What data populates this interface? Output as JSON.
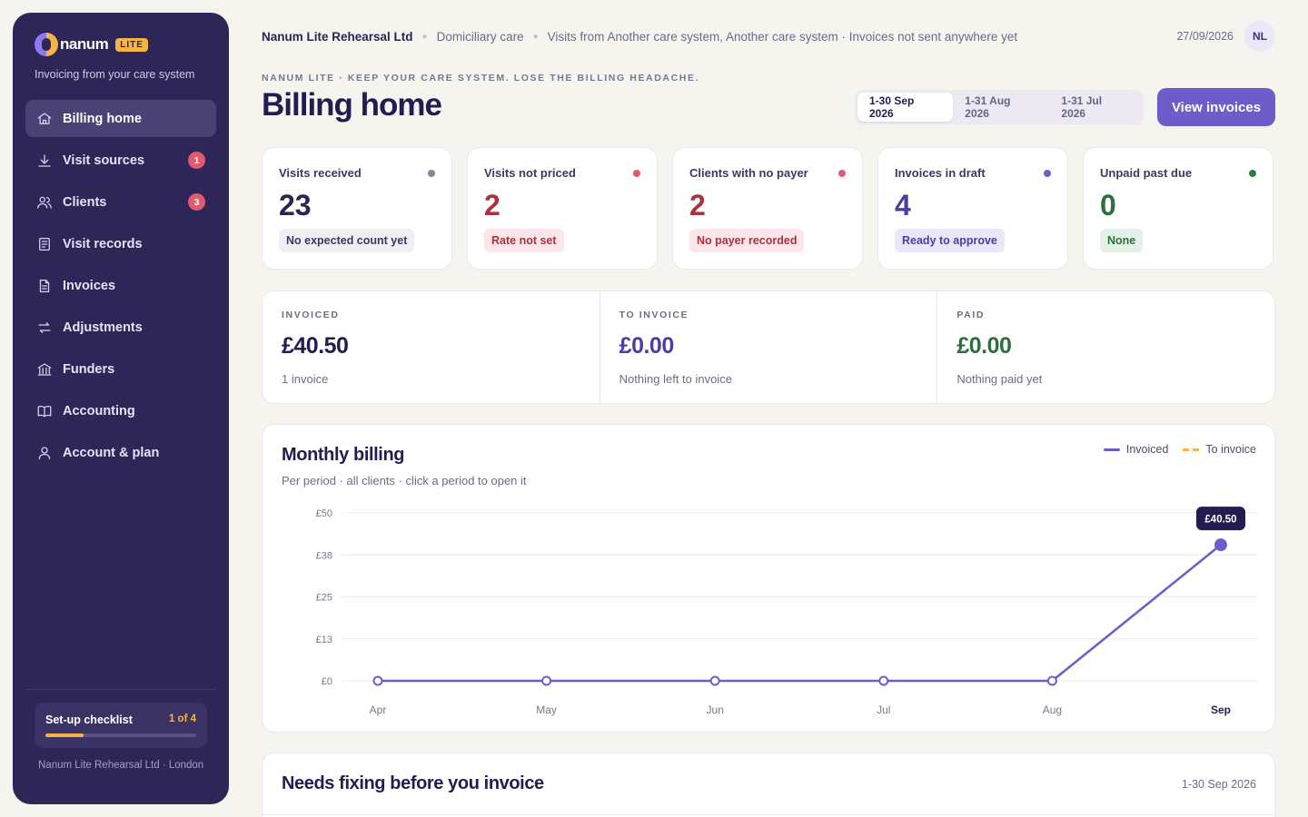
{
  "brand": {
    "name": "nanum",
    "badge": "LITE",
    "tagline": "Invoicing from your care system"
  },
  "nav": [
    {
      "label": "Billing home",
      "icon": "home-icon",
      "active": true,
      "badge": null
    },
    {
      "label": "Visit sources",
      "icon": "download-icon",
      "active": false,
      "badge": "1"
    },
    {
      "label": "Clients",
      "icon": "users-icon",
      "active": false,
      "badge": "3"
    },
    {
      "label": "Visit records",
      "icon": "records-icon",
      "active": false,
      "badge": null
    },
    {
      "label": "Invoices",
      "icon": "invoice-icon",
      "active": false,
      "badge": null
    },
    {
      "label": "Adjustments",
      "icon": "swap-icon",
      "active": false,
      "badge": null
    },
    {
      "label": "Funders",
      "icon": "bank-icon",
      "active": false,
      "badge": null
    },
    {
      "label": "Accounting",
      "icon": "book-icon",
      "active": false,
      "badge": null
    },
    {
      "label": "Account & plan",
      "icon": "user-icon",
      "active": false,
      "badge": null
    }
  ],
  "checklist": {
    "label": "Set-up checklist",
    "count": "1 of 4",
    "progress": 0.25
  },
  "side_org": "Nanum Lite Rehearsal Ltd · London",
  "topbar": {
    "org": "Nanum Lite Rehearsal Ltd",
    "care_type": "Domiciliary care",
    "source": "Visits from Another care system, Another care system · Invoices not sent anywhere yet",
    "date": "27/09/2026",
    "avatar": "NL"
  },
  "eyebrow": "NANUM LITE · KEEP YOUR CARE SYSTEM. LOSE THE BILLING HEADACHE.",
  "title": "Billing home",
  "periods": [
    "1-30 Sep 2026",
    "1-31 Aug 2026",
    "1-31 Jul 2026"
  ],
  "view_invoices": "View invoices",
  "stats": [
    {
      "label": "Visits received",
      "value": "23",
      "pill": "No expected count yet",
      "dot": "#8a8698",
      "value_color": "#2b2550",
      "pill_bg": "#f1eff4",
      "pill_color": "#3e3860"
    },
    {
      "label": "Visits not priced",
      "value": "2",
      "pill": "Rate not set",
      "dot": "#e15a6e",
      "value_color": "#a8323f",
      "pill_bg": "#fbe7e9",
      "pill_color": "#a8323f"
    },
    {
      "label": "Clients with no payer",
      "value": "2",
      "pill": "No payer recorded",
      "dot": "#e15a6e",
      "value_color": "#a8323f",
      "pill_bg": "#fbe7e9",
      "pill_color": "#a8323f"
    },
    {
      "label": "Invoices in draft",
      "value": "4",
      "pill": "Ready to approve",
      "dot": "#6d5dcb",
      "value_color": "#4a3fa0",
      "pill_bg": "#ebe7f8",
      "pill_color": "#4a3fa0"
    },
    {
      "label": "Unpaid past due",
      "value": "0",
      "pill": "None",
      "dot": "#2f7d45",
      "value_color": "#2f6e3e",
      "pill_bg": "#e3f1e6",
      "pill_color": "#2f6e3e"
    }
  ],
  "totals": [
    {
      "label": "INVOICED",
      "value": "£40.50",
      "sub": "1 invoice",
      "color": "#231d4f"
    },
    {
      "label": "TO INVOICE",
      "value": "£0.00",
      "sub": "Nothing left to invoice",
      "color": "#4a3fa0"
    },
    {
      "label": "PAID",
      "value": "£0.00",
      "sub": "Nothing paid yet",
      "color": "#2f6e3e"
    }
  ],
  "chart_header": {
    "title": "Monthly billing",
    "subtitle": "Per period · all clients · click a period to open it",
    "legend": [
      "Invoiced",
      "To invoice"
    ]
  },
  "chart_data": {
    "type": "line",
    "categories": [
      "Apr",
      "May",
      "Jun",
      "Jul",
      "Aug",
      "Sep"
    ],
    "series": [
      {
        "name": "Invoiced",
        "values": [
          0,
          0,
          0,
          0,
          0,
          40.5
        ],
        "color": "#6d5dcb"
      }
    ],
    "y_ticks": [
      "£0",
      "£13",
      "£25",
      "£38",
      "£50"
    ],
    "ylim": [
      0,
      50
    ],
    "annotation": "£40.50",
    "grid": true,
    "legend_position": "top-right"
  },
  "fix": {
    "title": "Needs fixing before you invoice",
    "period": "1-30 Sep 2026"
  }
}
